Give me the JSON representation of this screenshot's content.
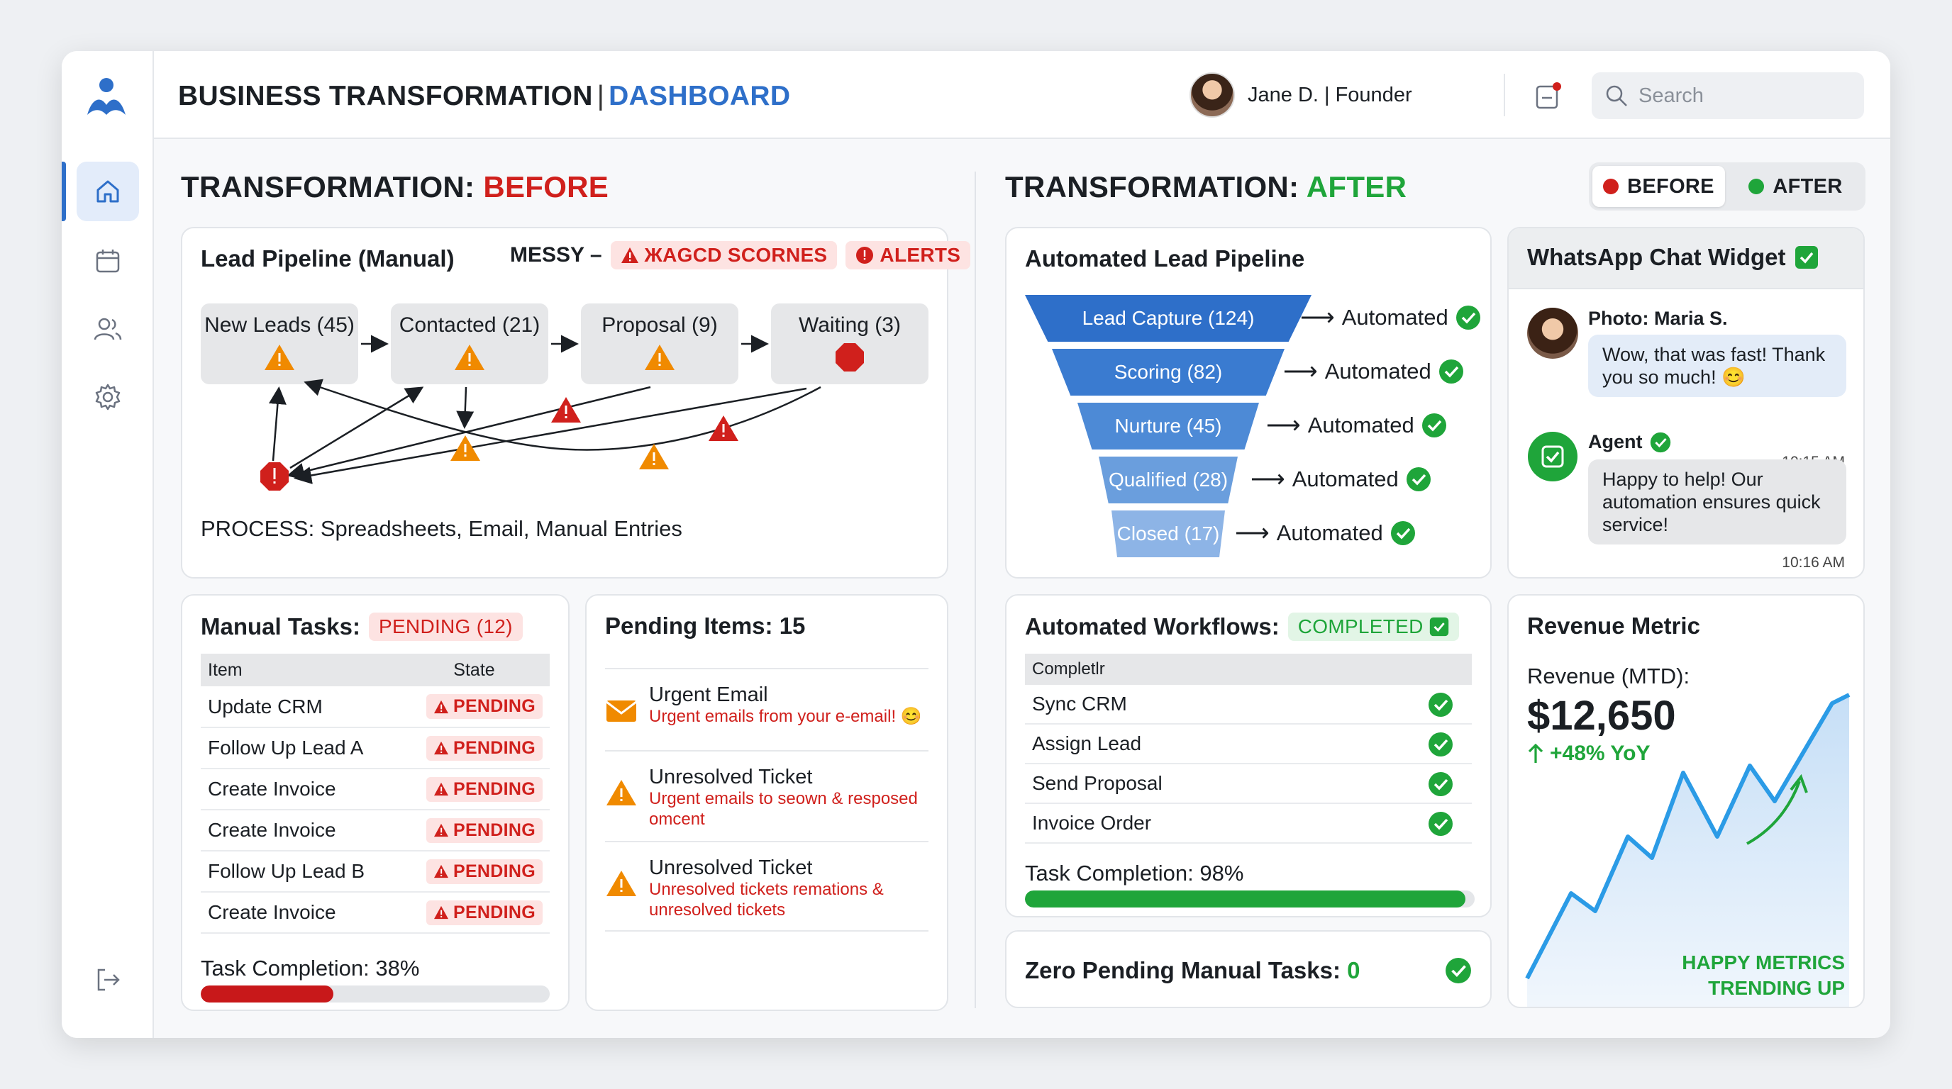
{
  "header": {
    "title_main": "BUSINESS TRANSFORMATION",
    "title_sep": "|",
    "title_accent": "DASHBOARD",
    "user": "Jane D. | Founder",
    "search_placeholder": "Search"
  },
  "sections": {
    "before_prefix": "TRANSFORMATION:",
    "before_word": "BEFORE",
    "after_prefix": "TRANSFORMATION:",
    "after_word": "AFTER"
  },
  "toggle": {
    "before": "BEFORE",
    "after": "AFTER"
  },
  "colors": {
    "accent": "#2e6fc9",
    "red": "#d0201c",
    "green": "#1fa53a",
    "orange": "#f08a00"
  },
  "lead_pipeline": {
    "title": "Lead Pipeline (Manual)",
    "messy": "MESSY –",
    "tag1": "ЖAGCD SCORNES",
    "tag2": "ALERTS",
    "stages": [
      "New Leads (45)",
      "Contacted (21)",
      "Proposal (9)",
      "Waiting (3)"
    ],
    "process": "PROCESS: Spreadsheets, Email, Manual Entries"
  },
  "manual_tasks": {
    "title": "Manual Tasks:",
    "badge": "PENDING (12)",
    "col_item": "Item",
    "col_state": "State",
    "rows": [
      {
        "item": "Update CRM",
        "state": "PENDING"
      },
      {
        "item": "Follow Up Lead A",
        "state": "PENDING"
      },
      {
        "item": "Create Invoice",
        "state": "PENDING"
      },
      {
        "item": "Create Invoice",
        "state": "PENDING"
      },
      {
        "item": "Follow Up Lead B",
        "state": "PENDING"
      },
      {
        "item": "Create Invoice",
        "state": "PENDING"
      }
    ],
    "completion_label": "Task Completion: 38%",
    "completion": 0.38
  },
  "pending_items": {
    "title": "Pending Items: 15",
    "items": [
      {
        "title": "Urgent Email",
        "desc": "Urgent emails from your e-email! 😊",
        "icon": "email-icon"
      },
      {
        "title": "Unresolved Ticket",
        "desc": "Urgent emails to seown & resposed omcent",
        "icon": "warning-icon"
      },
      {
        "title": "Unresolved Ticket",
        "desc": "Unresolved tickets remations & unresolved tickets",
        "icon": "warning-icon"
      }
    ]
  },
  "auto_pipeline": {
    "title": "Automated Lead Pipeline",
    "stages": [
      {
        "label": "Lead Capture (124)",
        "status": "Automated"
      },
      {
        "label": "Scoring (82)",
        "status": "Automated"
      },
      {
        "label": "Nurture (45)",
        "status": "Automated"
      },
      {
        "label": "Qualified (28)",
        "status": "Automated"
      },
      {
        "label": "Closed (17)",
        "status": "Automated"
      }
    ]
  },
  "chat": {
    "title": "WhatsApp Chat Widget",
    "customer_name": "Photo: Maria S.",
    "customer_msg": "Wow, that was fast! Thank you so much! 😊",
    "customer_time": "10:15 AM",
    "agent_name": "Agent",
    "agent_msg": "Happy to help! Our automation ensures quick service!",
    "agent_time": "10:16 AM"
  },
  "workflows": {
    "title": "Automated Workflows:",
    "badge": "COMPLETED",
    "col": "Completlr",
    "rows": [
      "Sync CRM",
      "Assign Lead",
      "Send Proposal",
      "Invoice Order"
    ],
    "completion_label": "Task Completion: 98%",
    "completion": 0.98
  },
  "zero_pending": {
    "label": "Zero Pending Manual Tasks:",
    "value": "0"
  },
  "revenue": {
    "title": "Revenue Metric",
    "label": "Revenue (MTD):",
    "value": "$12,650",
    "change": "+48% YoY",
    "note_line1": "HAPPY METRICS",
    "note_line2": "TRENDING UP"
  }
}
